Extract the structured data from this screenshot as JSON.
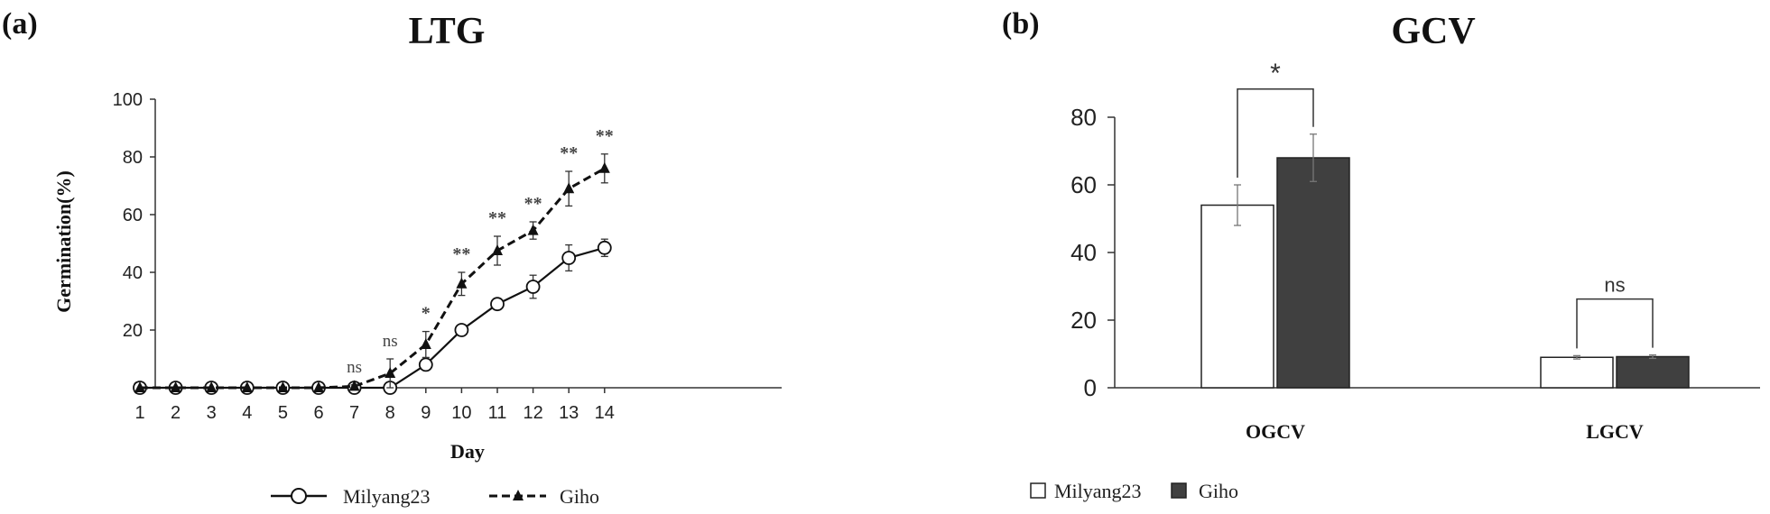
{
  "chart_data": [
    {
      "panel_label": "(a)",
      "type": "line",
      "title": "LTG",
      "xlabel": "Day",
      "ylabel": "Germination(%)",
      "xlim": [
        1,
        14
      ],
      "ylim": [
        0,
        100
      ],
      "yticks": [
        0,
        20,
        40,
        60,
        80,
        100
      ],
      "x": [
        1,
        2,
        3,
        4,
        5,
        6,
        7,
        8,
        9,
        10,
        11,
        12,
        13,
        14
      ],
      "series": [
        {
          "name": "Milyang23",
          "values": [
            0,
            0,
            0,
            0,
            0,
            0,
            0,
            0,
            8,
            20,
            29,
            35,
            45,
            48.5
          ],
          "errors": [
            0,
            0,
            0,
            0,
            0,
            0,
            0,
            0,
            1.5,
            1.5,
            1.5,
            4,
            4.5,
            3
          ],
          "marker": "open-circle",
          "line_style": "solid"
        },
        {
          "name": "Giho",
          "values": [
            0,
            0,
            0,
            0,
            0,
            0,
            0.5,
            5,
            15,
            36,
            47.5,
            54.5,
            69,
            76
          ],
          "errors": [
            0,
            0,
            0,
            0,
            0,
            0,
            0.5,
            5,
            4.5,
            4,
            5,
            3,
            6,
            5
          ],
          "marker": "filled-triangle",
          "line_style": "dashed"
        }
      ],
      "annotations": [
        {
          "x": 7,
          "text": "ns"
        },
        {
          "x": 8,
          "text": "ns"
        },
        {
          "x": 9,
          "text": "*"
        },
        {
          "x": 10,
          "text": "**"
        },
        {
          "x": 11,
          "text": "**"
        },
        {
          "x": 12,
          "text": "**"
        },
        {
          "x": 13,
          "text": "**"
        },
        {
          "x": 14,
          "text": "**"
        }
      ],
      "legend_position": "bottom-center",
      "grid": false,
      "colors": {
        "line": "#111111",
        "marker_fill_open": "#ffffff",
        "annotation": "#444444"
      }
    },
    {
      "panel_label": "(b)",
      "type": "bar",
      "title": "GCV",
      "categories": [
        "OGCV",
        "LGCV"
      ],
      "ylim": [
        0,
        80
      ],
      "yticks": [
        0,
        20,
        40,
        60,
        80
      ],
      "series": [
        {
          "name": "Milyang23",
          "values": [
            54,
            9
          ],
          "errors": [
            6,
            0.5
          ],
          "color": "#ffffff"
        },
        {
          "name": "Giho",
          "values": [
            68,
            9.2
          ],
          "errors": [
            7,
            0.5
          ],
          "color": "#404040"
        }
      ],
      "significance": [
        {
          "category": "OGCV",
          "text": "*"
        },
        {
          "category": "LGCV",
          "text": "ns"
        }
      ],
      "legend_position": "bottom-center",
      "grid": false
    }
  ]
}
